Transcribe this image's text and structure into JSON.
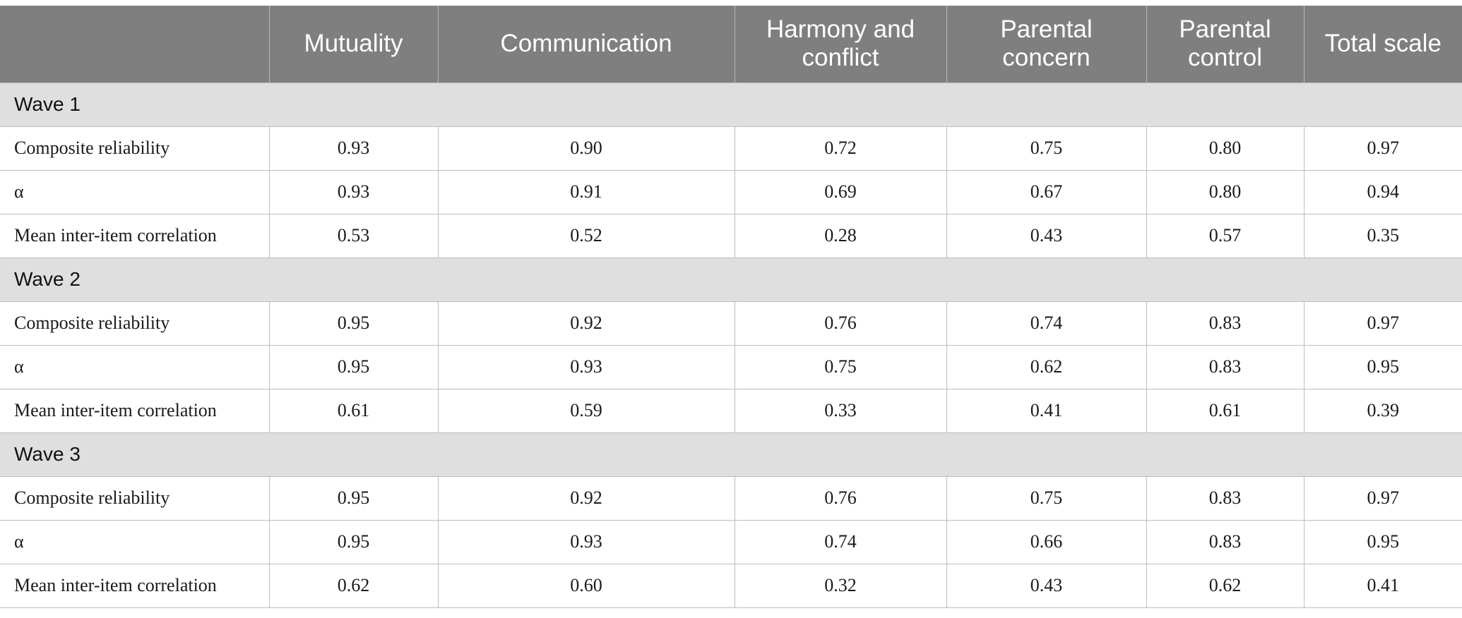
{
  "table": {
    "corner_label": "",
    "columns": [
      "Mutuality",
      "Communication",
      "Harmony and conflict",
      "Parental concern",
      "Parental control",
      "Total scale"
    ],
    "groups": [
      {
        "label": "Wave 1",
        "rows": [
          {
            "label": "Composite reliability",
            "values": [
              "0.93",
              "0.90",
              "0.72",
              "0.75",
              "0.80",
              "0.97"
            ]
          },
          {
            "label": "α",
            "values": [
              "0.93",
              "0.91",
              "0.69",
              "0.67",
              "0.80",
              "0.94"
            ]
          },
          {
            "label": "Mean inter-item correlation",
            "values": [
              "0.53",
              "0.52",
              "0.28",
              "0.43",
              "0.57",
              "0.35"
            ]
          }
        ]
      },
      {
        "label": "Wave 2",
        "rows": [
          {
            "label": "Composite reliability",
            "values": [
              "0.95",
              "0.92",
              "0.76",
              "0.74",
              "0.83",
              "0.97"
            ]
          },
          {
            "label": "α",
            "values": [
              "0.95",
              "0.93",
              "0.75",
              "0.62",
              "0.83",
              "0.95"
            ]
          },
          {
            "label": "Mean inter-item correlation",
            "values": [
              "0.61",
              "0.59",
              "0.33",
              "0.41",
              "0.61",
              "0.39"
            ]
          }
        ]
      },
      {
        "label": "Wave 3",
        "rows": [
          {
            "label": "Composite reliability",
            "values": [
              "0.95",
              "0.92",
              "0.76",
              "0.75",
              "0.83",
              "0.97"
            ]
          },
          {
            "label": "α",
            "values": [
              "0.95",
              "0.93",
              "0.74",
              "0.66",
              "0.83",
              "0.95"
            ]
          },
          {
            "label": "Mean inter-item correlation",
            "values": [
              "0.62",
              "0.60",
              "0.32",
              "0.43",
              "0.62",
              "0.41"
            ]
          }
        ]
      }
    ]
  }
}
